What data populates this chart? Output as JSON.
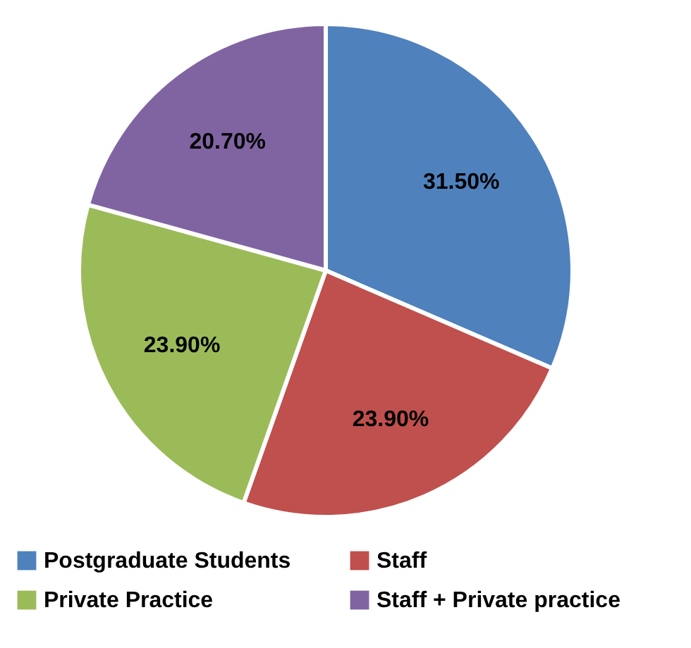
{
  "chart_data": {
    "type": "pie",
    "categories": [
      "Postgraduate Students",
      "Staff",
      "Private Practice",
      "Staff + Private practice"
    ],
    "values": [
      31.5,
      23.9,
      23.9,
      20.7
    ],
    "colors": [
      "#4f81bd",
      "#c0504d",
      "#9bbb59",
      "#8064a2"
    ],
    "value_labels": [
      "31.50%",
      "23.90%",
      "23.90%",
      "20.70%"
    ],
    "legend": "bottom"
  }
}
